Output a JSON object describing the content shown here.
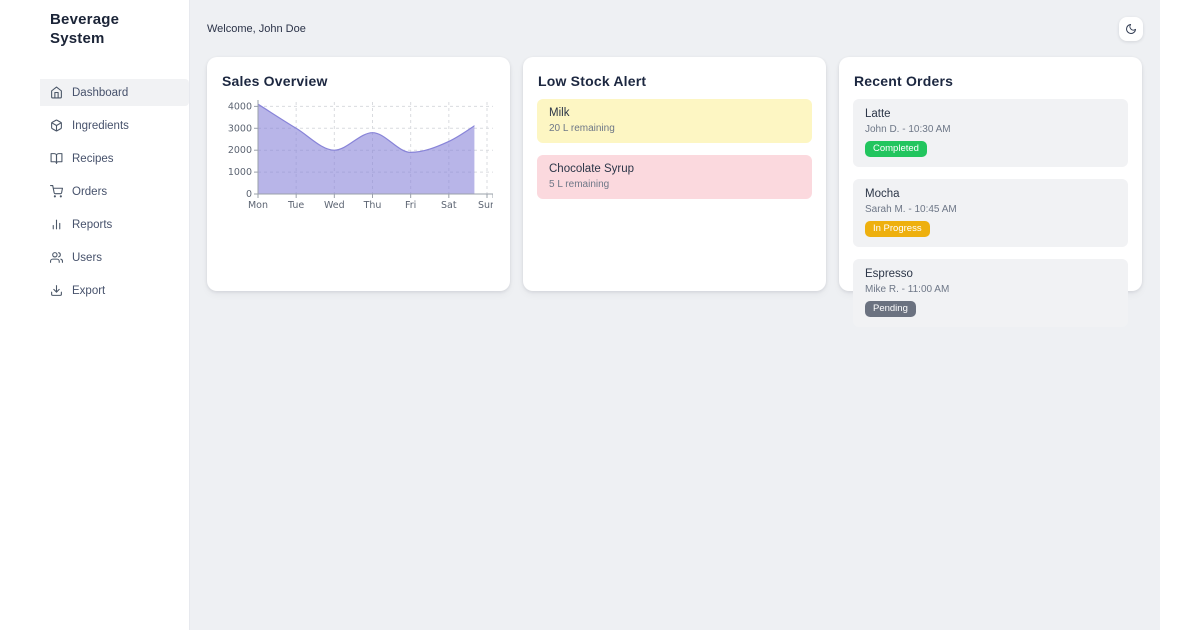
{
  "app": {
    "title": "Beverage System"
  },
  "sidebar": {
    "items": [
      {
        "label": "Dashboard",
        "icon": "home-icon",
        "active": true
      },
      {
        "label": "Ingredients",
        "icon": "package-icon",
        "active": false
      },
      {
        "label": "Recipes",
        "icon": "book-open-icon",
        "active": false
      },
      {
        "label": "Orders",
        "icon": "cart-icon",
        "active": false
      },
      {
        "label": "Reports",
        "icon": "bar-chart-icon",
        "active": false
      },
      {
        "label": "Users",
        "icon": "users-icon",
        "active": false
      },
      {
        "label": "Export",
        "icon": "download-icon",
        "active": false
      }
    ]
  },
  "topbar": {
    "welcome": "Welcome, John Doe",
    "theme_toggle_icon": "moon-icon"
  },
  "cards": {
    "sales_overview": {
      "title": "Sales Overview"
    },
    "low_stock": {
      "title": "Low Stock Alert",
      "items": [
        {
          "name": "Milk",
          "detail": "20 L remaining",
          "severity": "warning",
          "bg": "#fdf6c3"
        },
        {
          "name": "Chocolate Syrup",
          "detail": "5 L remaining",
          "severity": "critical",
          "bg": "#fbd9de"
        }
      ]
    },
    "recent_orders": {
      "title": "Recent Orders",
      "orders": [
        {
          "name": "Latte",
          "meta": "John D. - 10:30 AM",
          "status": "Completed",
          "status_color": "#22c55e"
        },
        {
          "name": "Mocha",
          "meta": "Sarah M. - 10:45 AM",
          "status": "In Progress",
          "status_color": "#eeb00e"
        },
        {
          "name": "Espresso",
          "meta": "Mike R. - 11:00 AM",
          "status": "Pending",
          "status_color": "#6b7280"
        }
      ]
    }
  },
  "chart_data": {
    "type": "area",
    "title": "Sales Overview",
    "categories": [
      "Mon",
      "Tue",
      "Wed",
      "Thu",
      "Fri",
      "Sat",
      "Sun"
    ],
    "values": [
      4100,
      3000,
      2000,
      2800,
      1900,
      2400,
      3500
    ],
    "yticks": [
      0,
      1000,
      2000,
      3000,
      4000
    ],
    "ylim": [
      0,
      4200
    ],
    "xlabel": "",
    "ylabel": "",
    "grid": "dashed",
    "legend": "none",
    "line_color": "#8884d8",
    "fill_color": "#8884d8",
    "fill_opacity": 0.6,
    "area_end_fraction": 0.945
  }
}
